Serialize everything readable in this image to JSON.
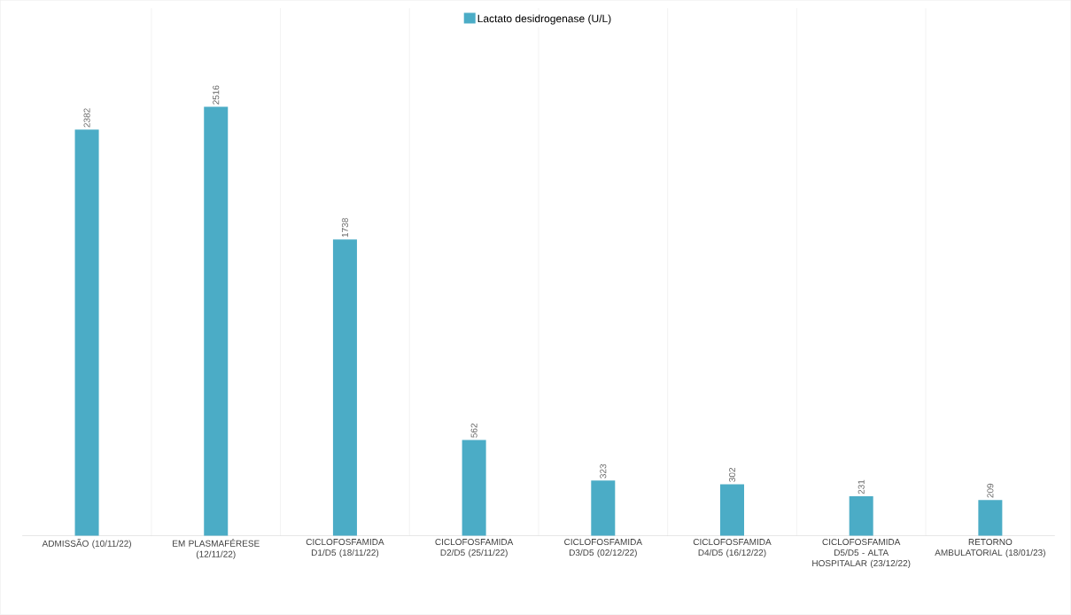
{
  "chart_data": {
    "type": "bar",
    "categories": [
      "ADMISSÃO (10/11/22)",
      "EM PLASMAFÉRESE (12/11/22)",
      "CICLOFOSFAMIDA D1/D5 (18/11/22)",
      "CICLOFOSFAMIDA D2/D5 (25/11/22)",
      "CICLOFOSFAMIDA D3/D5 (02/12/22)",
      "CICLOFOSFAMIDA D4/D5 (16/12/22)",
      "CICLOFOSFAMIDA D5/D5 - ALTA HOSPITALAR (23/12/22)",
      "RETORNO AMBULATORIAL (18/01/23)"
    ],
    "series": [
      {
        "name": "Lactato desidrogenase (U/L)",
        "color": "#4bacc6",
        "values": [
          2382,
          2516,
          1738,
          562,
          323,
          302,
          231,
          209
        ]
      }
    ],
    "data_labels": true,
    "grid": "x",
    "legend": "top"
  }
}
